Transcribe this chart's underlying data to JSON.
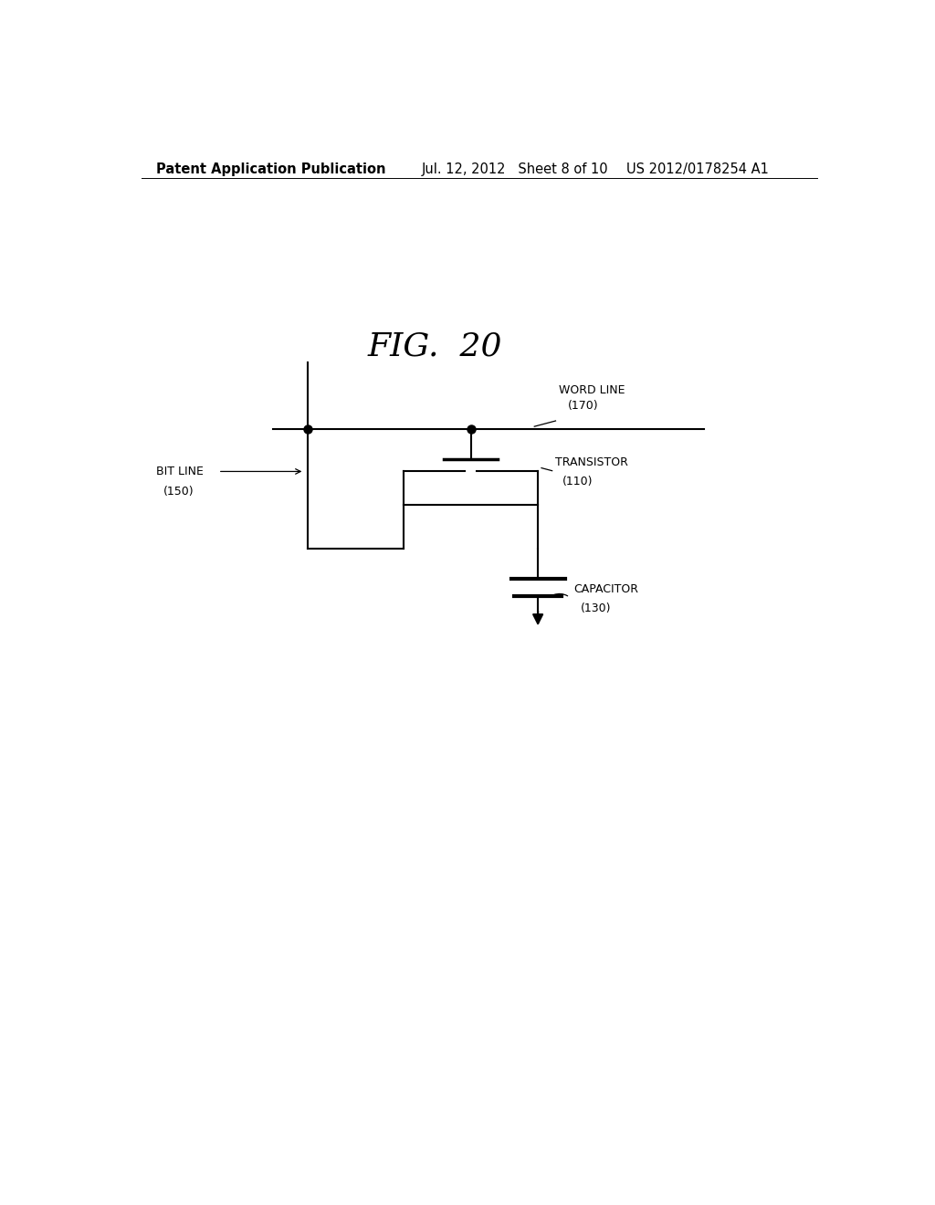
{
  "fig_title": "FIG.  20",
  "header_left": "Patent Application Publication",
  "header_center": "Jul. 12, 2012   Sheet 8 of 10",
  "header_right": "US 2012/0178254 A1",
  "background_color": "#ffffff",
  "line_color": "#000000",
  "font_color": "#000000",
  "title_fontsize": 26,
  "header_fontsize": 10.5,
  "label_fontsize": 9,
  "word_line_label": "WORD LINE",
  "word_line_ref": "(170)",
  "bit_line_label": "BIT LINE",
  "bit_line_ref": "(150)",
  "transistor_label": "TRANSISTOR",
  "transistor_ref": "(110)",
  "capacitor_label": "CAPACITOR",
  "capacitor_ref": "(130)"
}
